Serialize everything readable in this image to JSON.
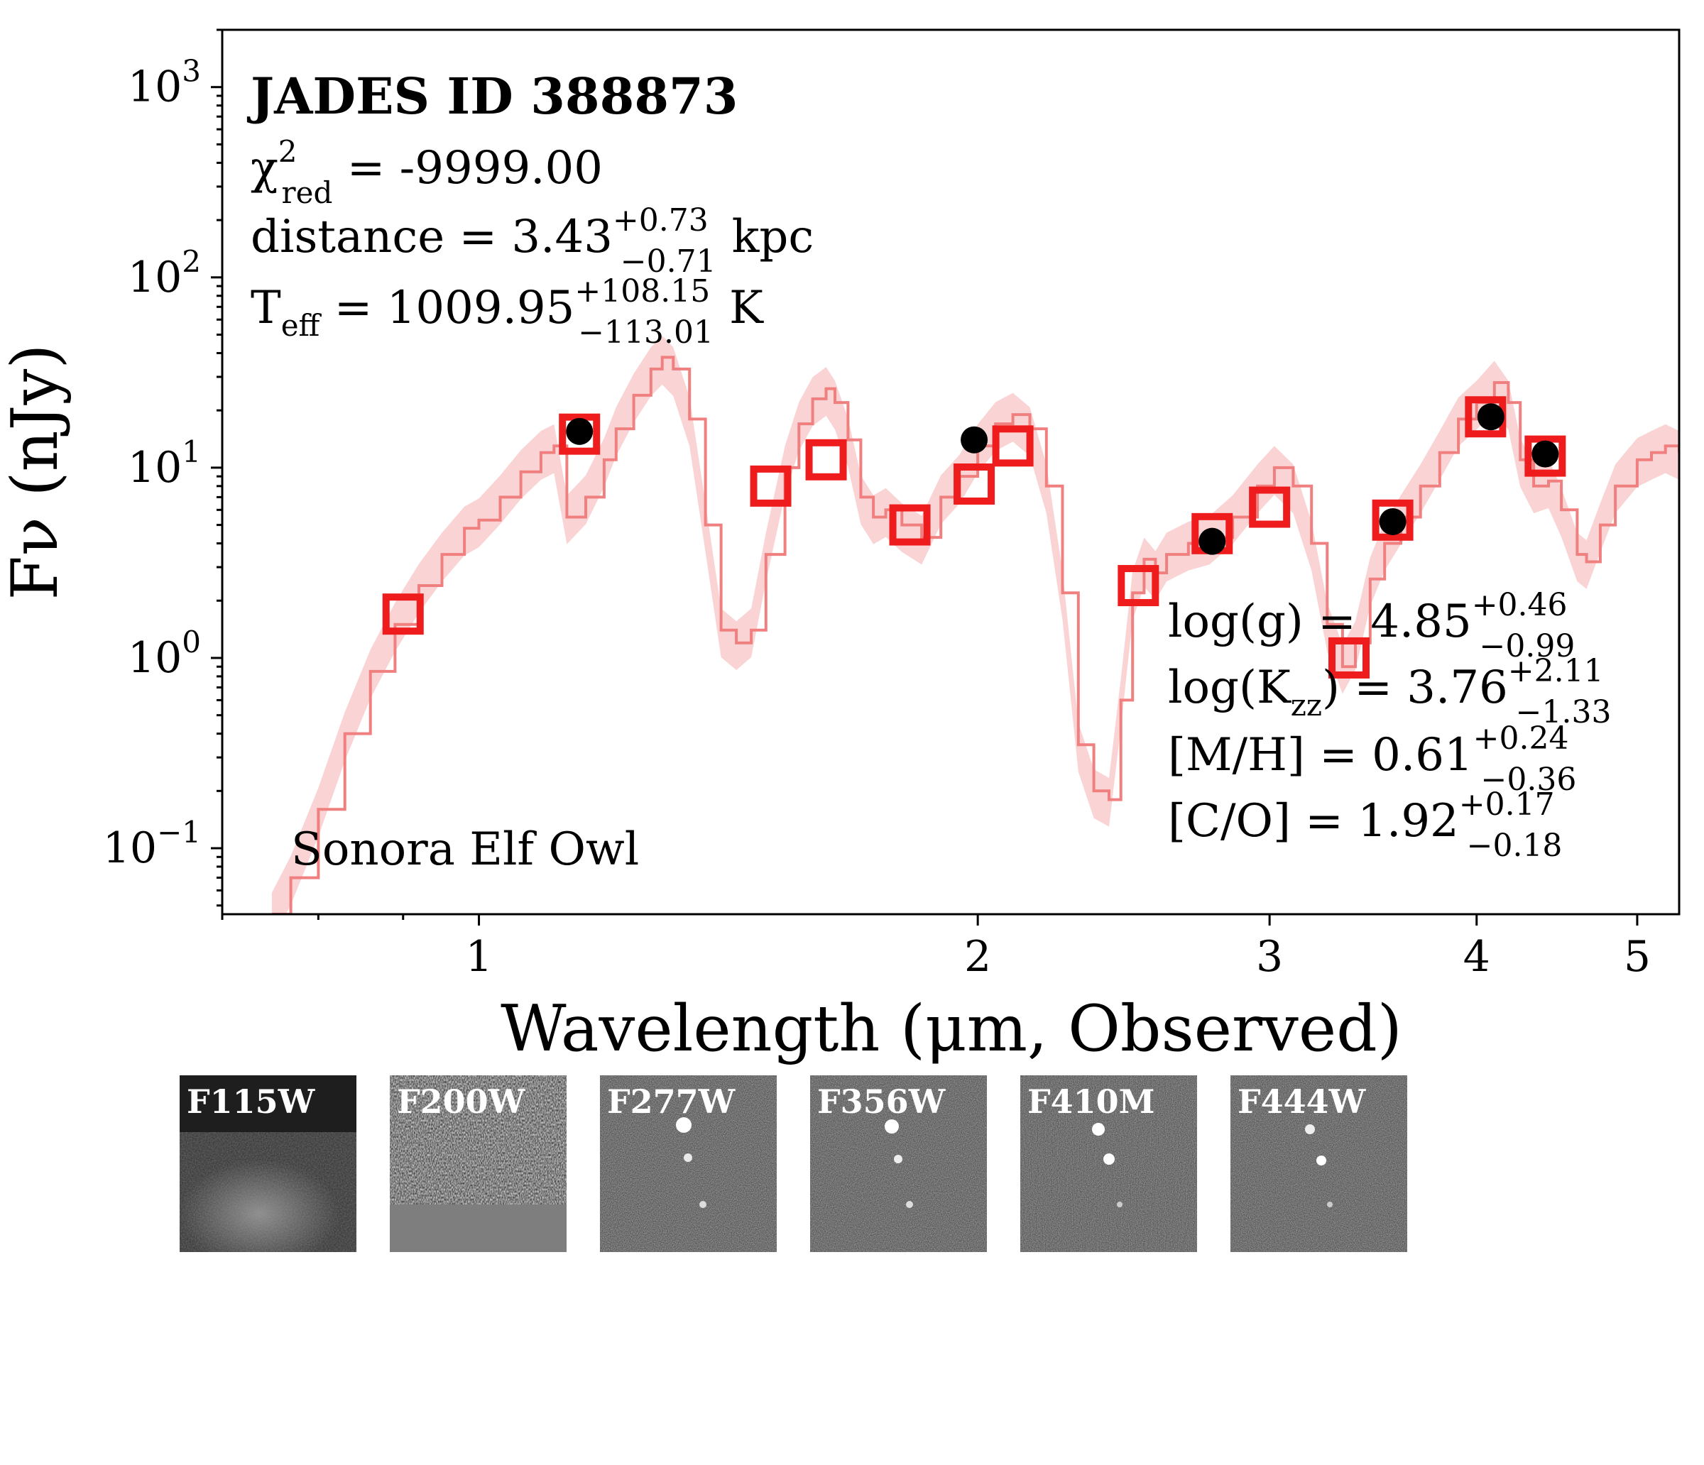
{
  "chart_data": {
    "type": "scatter",
    "x_scale": "log",
    "y_scale": "log",
    "xlim": [
      0.7,
      5.3
    ],
    "ylim": [
      0.045,
      2000
    ],
    "xlabel": "Wavelength (μm, Observed)",
    "ylabel": "Fν (nJy)",
    "x_ticks": [
      {
        "value": 1,
        "label": "1"
      },
      {
        "value": 2,
        "label": "2"
      },
      {
        "value": 3,
        "label": "3"
      },
      {
        "value": 4,
        "label": "4"
      },
      {
        "value": 5,
        "label": "5"
      }
    ],
    "y_ticks": [
      {
        "value": 0.1,
        "base": "10",
        "exp": "−1"
      },
      {
        "value": 1,
        "base": "10",
        "exp": "0"
      },
      {
        "value": 10,
        "base": "10",
        "exp": "1"
      },
      {
        "value": 100,
        "base": "10",
        "exp": "2"
      },
      {
        "value": 1000,
        "base": "10",
        "exp": "3"
      }
    ],
    "title": "JADES ID 388873",
    "model_name": "Sonora Elf Owl",
    "fit_params": {
      "chi2_base": "χ",
      "chi2_sup": "2",
      "chi2_sub": "red",
      "chi2_value": " = -9999.00",
      "distance_prefix": "distance = 3.43",
      "distance_plus": "+0.73",
      "distance_minus": "−0.71",
      "distance_unit": "kpc",
      "teff_prefix": "T",
      "teff_sub": "eff",
      "teff_value": " = 1009.95",
      "teff_plus": "+108.15",
      "teff_minus": "−113.01",
      "teff_unit": "K",
      "logg_prefix": "log(g) = 4.85",
      "logg_plus": "+0.46",
      "logg_minus": "−0.99",
      "logk_prefix": "log(K",
      "logk_sub": "zz",
      "logk_value": ") = 3.76",
      "logk_plus": "+2.11",
      "logk_minus": "−1.33",
      "mh_prefix": "[M/H] = 0.61",
      "mh_plus": "+0.24",
      "mh_minus": "−0.36",
      "co_prefix": "[C/O] = 1.92",
      "co_plus": "+0.17",
      "co_minus": "−0.18"
    },
    "model_photometry": [
      {
        "x": 0.9,
        "y": 1.7
      },
      {
        "x": 1.15,
        "y": 15.0
      },
      {
        "x": 1.5,
        "y": 8.0
      },
      {
        "x": 1.62,
        "y": 11.0
      },
      {
        "x": 1.82,
        "y": 5.0
      },
      {
        "x": 1.99,
        "y": 8.2
      },
      {
        "x": 2.1,
        "y": 13.0
      },
      {
        "x": 2.5,
        "y": 2.4
      },
      {
        "x": 2.77,
        "y": 4.5
      },
      {
        "x": 3.0,
        "y": 6.2
      },
      {
        "x": 3.35,
        "y": 1.0
      },
      {
        "x": 3.56,
        "y": 5.3
      },
      {
        "x": 4.05,
        "y": 18.5
      },
      {
        "x": 4.4,
        "y": 11.5
      }
    ],
    "observed_photometry": [
      {
        "x": 1.15,
        "y": 15.5
      },
      {
        "x": 1.99,
        "y": 14.0
      },
      {
        "x": 2.77,
        "y": 4.1
      },
      {
        "x": 3.56,
        "y": 5.2
      },
      {
        "x": 4.08,
        "y": 18.5
      },
      {
        "x": 4.4,
        "y": 11.8
      }
    ],
    "model_spectrum": [
      [
        0.75,
        0.045
      ],
      [
        0.77,
        0.07
      ],
      [
        0.8,
        0.16
      ],
      [
        0.83,
        0.4
      ],
      [
        0.86,
        0.85
      ],
      [
        0.89,
        1.5
      ],
      [
        0.92,
        2.4
      ],
      [
        0.95,
        3.5
      ],
      [
        0.98,
        4.8
      ],
      [
        1.0,
        5.3
      ],
      [
        1.03,
        7.0
      ],
      [
        1.06,
        9.5
      ],
      [
        1.09,
        12.0
      ],
      [
        1.11,
        13.0
      ],
      [
        1.13,
        5.5
      ],
      [
        1.16,
        7.0
      ],
      [
        1.19,
        11.0
      ],
      [
        1.21,
        16.0
      ],
      [
        1.24,
        24.0
      ],
      [
        1.27,
        33.0
      ],
      [
        1.29,
        38.0
      ],
      [
        1.31,
        33.0
      ],
      [
        1.34,
        18.0
      ],
      [
        1.37,
        5.0
      ],
      [
        1.4,
        1.4
      ],
      [
        1.43,
        1.2
      ],
      [
        1.46,
        1.4
      ],
      [
        1.49,
        3.5
      ],
      [
        1.53,
        10.0
      ],
      [
        1.56,
        17.0
      ],
      [
        1.59,
        23.0
      ],
      [
        1.62,
        26.0
      ],
      [
        1.64,
        22.0
      ],
      [
        1.67,
        14.0
      ],
      [
        1.7,
        7.0
      ],
      [
        1.73,
        5.5
      ],
      [
        1.76,
        6.0
      ],
      [
        1.8,
        5.0
      ],
      [
        1.85,
        4.3
      ],
      [
        1.9,
        7.0
      ],
      [
        1.95,
        9.0
      ],
      [
        2.0,
        13.0
      ],
      [
        2.05,
        17.0
      ],
      [
        2.1,
        19.0
      ],
      [
        2.15,
        16.0
      ],
      [
        2.2,
        8.0
      ],
      [
        2.25,
        2.2
      ],
      [
        2.3,
        0.35
      ],
      [
        2.35,
        0.2
      ],
      [
        2.4,
        0.18
      ],
      [
        2.44,
        0.6
      ],
      [
        2.48,
        2.2
      ],
      [
        2.52,
        3.3
      ],
      [
        2.56,
        2.8
      ],
      [
        2.6,
        3.5
      ],
      [
        2.68,
        4.0
      ],
      [
        2.76,
        4.3
      ],
      [
        2.85,
        5.5
      ],
      [
        2.95,
        8.0
      ],
      [
        3.02,
        10.0
      ],
      [
        3.1,
        8.0
      ],
      [
        3.18,
        4.0
      ],
      [
        3.25,
        1.5
      ],
      [
        3.32,
        0.9
      ],
      [
        3.38,
        1.2
      ],
      [
        3.45,
        2.6
      ],
      [
        3.52,
        4.0
      ],
      [
        3.6,
        5.5
      ],
      [
        3.7,
        8.0
      ],
      [
        3.8,
        12.0
      ],
      [
        3.9,
        18.0
      ],
      [
        4.0,
        22.0
      ],
      [
        4.1,
        28.0
      ],
      [
        4.18,
        22.0
      ],
      [
        4.25,
        11.0
      ],
      [
        4.33,
        8.0
      ],
      [
        4.42,
        8.5
      ],
      [
        4.5,
        6.0
      ],
      [
        4.6,
        3.5
      ],
      [
        4.66,
        3.2
      ],
      [
        4.75,
        5.0
      ],
      [
        4.85,
        8.0
      ],
      [
        5.0,
        11.0
      ],
      [
        5.1,
        12.0
      ],
      [
        5.2,
        13.0
      ],
      [
        5.3,
        12.0
      ]
    ],
    "cutouts": [
      {
        "label": "F115W"
      },
      {
        "label": "F200W"
      },
      {
        "label": "F277W"
      },
      {
        "label": "F356W"
      },
      {
        "label": "F410M"
      },
      {
        "label": "F444W"
      }
    ],
    "colors": {
      "model_line": "#f08080",
      "model_band": "#fad4d4",
      "model_photometry": "#ee1c1c",
      "observed": "#000000"
    }
  }
}
